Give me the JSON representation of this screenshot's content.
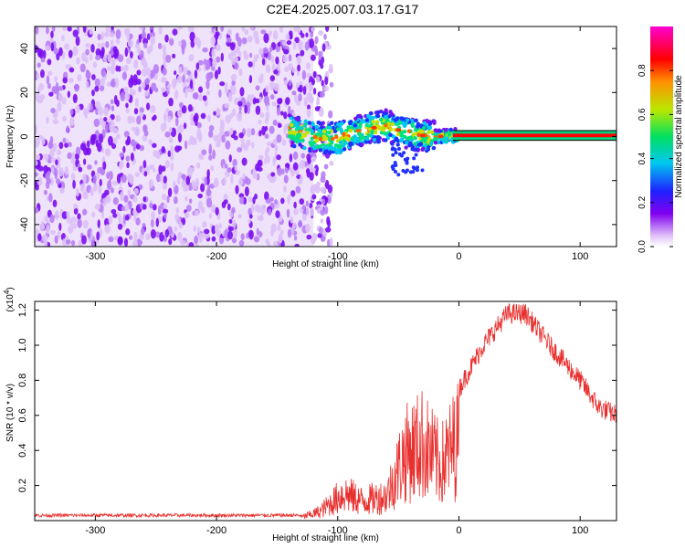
{
  "title": "C2E4.2025.007.03.17.G17",
  "chart_data": [
    {
      "type": "heatmap",
      "xlabel": "Height of straight line (km)",
      "ylabel": "Frequency (Hz)",
      "xlim": [
        -350,
        130
      ],
      "ylim": [
        -50,
        50
      ],
      "x_ticks": [
        -300,
        -200,
        -100,
        0,
        100
      ],
      "y_ticks": [
        -40,
        -20,
        0,
        20,
        40
      ],
      "noise_region_x": [
        -350,
        -120
      ],
      "signal_trace": [
        {
          "x": -140,
          "y": 3
        },
        {
          "x": -120,
          "y": 0
        },
        {
          "x": -100,
          "y": -1
        },
        {
          "x": -80,
          "y": 3
        },
        {
          "x": -60,
          "y": 5
        },
        {
          "x": -40,
          "y": 1
        },
        {
          "x": -20,
          "y": 0
        },
        {
          "x": 0,
          "y": 0.5
        },
        {
          "x": 130,
          "y": 0.5
        }
      ],
      "colorbar": {
        "label": "Normalized spectral amplitude",
        "ticks": [
          0.0,
          0.2,
          0.4,
          0.6,
          0.8
        ],
        "range": [
          0,
          1
        ]
      }
    },
    {
      "type": "line",
      "series_color": "#e8302e",
      "xlabel": "Height of straight line (km)",
      "ylabel": "SNR (10 * v/v)",
      "multiplier_label": "(x10",
      "multiplier_exp": "4",
      "multiplier_close": ")",
      "xlim": [
        -350,
        130
      ],
      "ylim": [
        0,
        1.25
      ],
      "x_ticks": [
        -300,
        -200,
        -100,
        0,
        100
      ],
      "y_ticks": [
        0.2,
        0.4,
        0.6,
        0.8,
        1.0,
        1.2
      ],
      "envelope": [
        {
          "x": -350,
          "y": 0.03
        },
        {
          "x": -130,
          "y": 0.03
        },
        {
          "x": -115,
          "y": 0.08
        },
        {
          "x": -95,
          "y": 0.25
        },
        {
          "x": -80,
          "y": 0.18
        },
        {
          "x": -60,
          "y": 0.22
        },
        {
          "x": -45,
          "y": 0.6
        },
        {
          "x": -30,
          "y": 0.7
        },
        {
          "x": -15,
          "y": 0.5
        },
        {
          "x": 0,
          "y": 0.75
        },
        {
          "x": 20,
          "y": 1.0
        },
        {
          "x": 40,
          "y": 1.18
        },
        {
          "x": 55,
          "y": 1.18
        },
        {
          "x": 75,
          "y": 1.0
        },
        {
          "x": 100,
          "y": 0.8
        },
        {
          "x": 115,
          "y": 0.65
        },
        {
          "x": 130,
          "y": 0.6
        }
      ]
    }
  ]
}
